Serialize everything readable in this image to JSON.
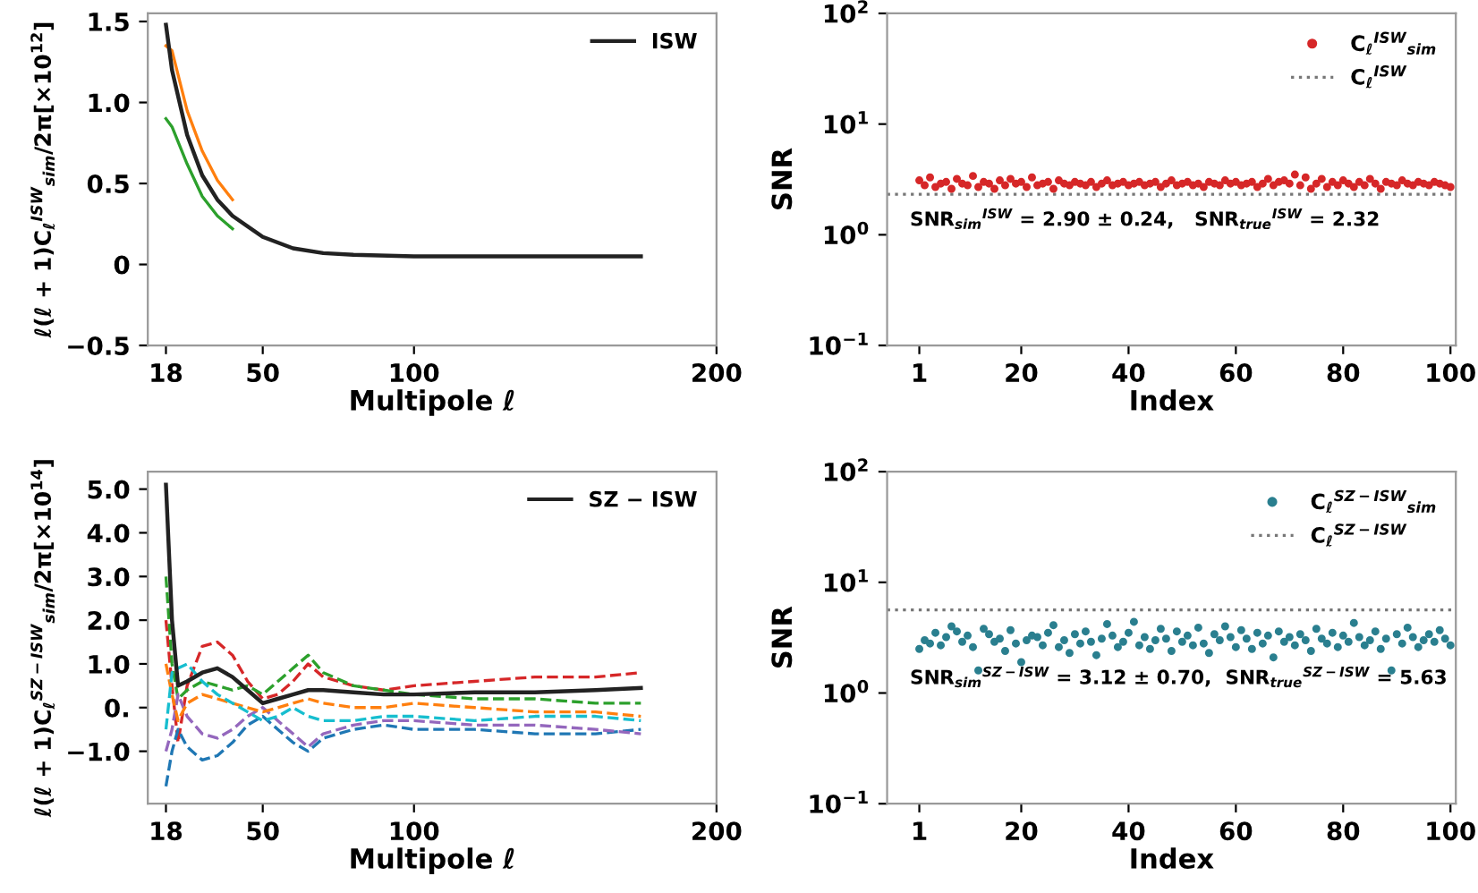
{
  "chart_data": [
    {
      "type": "line",
      "xlabel": "Multipole ℓ",
      "ylabel": "ℓ(ℓ + 1)C$_{ℓ}$$^{ISW}$$_{sim}$/2π[×10$^{12}$]",
      "xlim": [
        12,
        200
      ],
      "xticks": [
        18,
        50,
        100,
        200
      ],
      "ylim": [
        -0.5,
        1.55
      ],
      "yticks": [
        {
          "value": -0.5,
          "label": "−0.5"
        },
        0,
        0.5,
        {
          "value": 1,
          "label": "1.0"
        },
        1.5
      ],
      "legend": "top right",
      "grid": false,
      "x": [
        18,
        20,
        25,
        30,
        35,
        40,
        50,
        60,
        70,
        80,
        100,
        120,
        140,
        160,
        175
      ],
      "series": [
        {
          "color": "#ff7f0e",
          "values": [
            1.35,
            1.32,
            0.95,
            0.7,
            0.52,
            0.4,
            null,
            null,
            null,
            null,
            null,
            null,
            null,
            null,
            null
          ]
        },
        {
          "color": "#2ca02c",
          "values": [
            0.9,
            0.85,
            0.62,
            0.42,
            0.3,
            0.22,
            null,
            null,
            null,
            null,
            null,
            null,
            null,
            null,
            null
          ]
        },
        {
          "name": "ISW",
          "color": "#222222",
          "values": [
            1.48,
            1.2,
            0.8,
            0.55,
            0.4,
            0.3,
            0.17,
            0.1,
            0.07,
            0.06,
            0.05,
            0.05,
            0.05,
            0.05,
            0.05
          ]
        }
      ]
    },
    {
      "type": "scatter",
      "xlabel": "Index",
      "ylabel": "SNR",
      "log": "y",
      "xlim": [
        -5,
        101
      ],
      "xticks": [
        1,
        20,
        40,
        60,
        80,
        100
      ],
      "ylim": [
        0.1,
        100
      ],
      "yticks": [
        {
          "value": 0.1,
          "label": "10$^{−1}$"
        },
        {
          "value": 1,
          "label": "10$^{0}$"
        },
        {
          "value": 10,
          "label": "10$^{1}$"
        },
        {
          "value": 100,
          "label": "10$^{2}$"
        }
      ],
      "legend": "top right",
      "grid": false,
      "marker": "circle",
      "x": [
        1,
        2,
        3,
        4,
        5,
        6,
        7,
        8,
        9,
        10,
        11,
        12,
        13,
        14,
        15,
        16,
        17,
        18,
        19,
        20,
        21,
        22,
        23,
        24,
        25,
        26,
        27,
        28,
        29,
        30,
        31,
        32,
        33,
        34,
        35,
        36,
        37,
        38,
        39,
        40,
        41,
        42,
        43,
        44,
        45,
        46,
        47,
        48,
        49,
        50,
        51,
        52,
        53,
        54,
        55,
        56,
        57,
        58,
        59,
        60,
        61,
        62,
        63,
        64,
        65,
        66,
        67,
        68,
        69,
        70,
        71,
        72,
        73,
        74,
        75,
        76,
        77,
        78,
        79,
        80,
        81,
        82,
        83,
        84,
        85,
        86,
        87,
        88,
        89,
        90,
        91,
        92,
        93,
        94,
        95,
        96,
        97,
        98,
        99,
        100
      ],
      "series": [
        {
          "name": "C$_{ℓ}$$^{ISW}$$_{sim}$",
          "color": "#d62728",
          "values": [
            3.1,
            2.8,
            3.3,
            2.7,
            2.9,
            3.0,
            2.6,
            3.2,
            2.9,
            2.8,
            3.4,
            2.7,
            3.0,
            2.9,
            2.6,
            3.1,
            2.8,
            3.2,
            2.9,
            3.0,
            2.7,
            3.3,
            2.8,
            2.9,
            3.0,
            2.6,
            3.1,
            2.9,
            2.8,
            3.0,
            2.9,
            2.8,
            3.0,
            2.7,
            2.9,
            3.1,
            2.8,
            2.9,
            3.0,
            2.8,
            2.9,
            3.0,
            2.8,
            2.9,
            3.0,
            2.7,
            2.9,
            3.1,
            2.8,
            2.9,
            3.0,
            2.8,
            2.9,
            2.7,
            3.0,
            2.9,
            2.8,
            3.1,
            2.9,
            3.0,
            2.8,
            2.9,
            3.0,
            2.7,
            2.9,
            3.2,
            2.8,
            3.0,
            3.1,
            2.9,
            3.5,
            2.8,
            3.3,
            2.6,
            2.9,
            3.2,
            2.7,
            3.0,
            2.8,
            3.1,
            2.9,
            2.7,
            3.0,
            2.8,
            3.2,
            2.9,
            2.6,
            3.0,
            2.9,
            2.8,
            3.1,
            2.9,
            2.8,
            3.0,
            2.9,
            2.8,
            3.0,
            2.9,
            2.8,
            2.7
          ]
        }
      ],
      "ref_lines": [
        {
          "axis": "y",
          "value": 2.32,
          "label": "C$_{ℓ}$$^{ISW}$",
          "color": "#777777",
          "line_style": "dotted"
        }
      ],
      "annotations": [
        "SNR$_{sim}$$^{ISW}$ = 2.90 ± 0.24,   SNR$_{true}$$^{ISW}$ = 2.32"
      ]
    },
    {
      "type": "line",
      "xlabel": "Multipole ℓ",
      "ylabel": "ℓ(ℓ + 1)C$_{ℓ}$$^{SZ−ISW}$$_{sim}$/2π[×10$^{14}$]",
      "xlim": [
        12,
        200
      ],
      "xticks": [
        18,
        50,
        100,
        200
      ],
      "ylim": [
        -2.2,
        5.4
      ],
      "yticks": [
        {
          "value": -1,
          "label": "−1.0"
        },
        {
          "value": 0,
          "label": "0."
        },
        {
          "value": 1,
          "label": "1.0"
        },
        {
          "value": 2,
          "label": "2.0"
        },
        {
          "value": 3,
          "label": "3.0"
        },
        {
          "value": 4,
          "label": "4.0"
        },
        {
          "value": 5,
          "label": "5.0"
        }
      ],
      "legend": "top right",
      "grid": false,
      "x": [
        18,
        20,
        22,
        25,
        30,
        35,
        40,
        45,
        50,
        55,
        60,
        65,
        70,
        80,
        90,
        100,
        120,
        140,
        160,
        175
      ],
      "series": [
        {
          "color": "#d62728",
          "line_style": "dashed",
          "values": [
            2.0,
            0.5,
            -0.8,
            0.5,
            1.4,
            1.5,
            1.2,
            0.6,
            0.2,
            0.3,
            0.6,
            1.0,
            0.7,
            0.5,
            0.4,
            0.5,
            0.6,
            0.7,
            0.7,
            0.8
          ]
        },
        {
          "color": "#1f77b4",
          "line_style": "dashed",
          "values": [
            -1.8,
            -1.0,
            -0.5,
            -0.9,
            -1.2,
            -1.1,
            -0.8,
            -0.4,
            -0.2,
            -0.5,
            -0.8,
            -1.0,
            -0.7,
            -0.5,
            -0.4,
            -0.5,
            -0.5,
            -0.6,
            -0.6,
            -0.5
          ]
        },
        {
          "color": "#2ca02c",
          "line_style": "dashed",
          "values": [
            3.0,
            1.0,
            0.2,
            0.4,
            0.6,
            0.5,
            0.4,
            0.5,
            0.3,
            0.6,
            0.9,
            1.2,
            0.8,
            0.5,
            0.4,
            0.3,
            0.2,
            0.2,
            0.1,
            0.1
          ]
        },
        {
          "color": "#9467bd",
          "line_style": "dashed",
          "values": [
            -1.0,
            -0.5,
            0.3,
            -0.2,
            -0.6,
            -0.7,
            -0.5,
            -0.2,
            0.0,
            -0.3,
            -0.6,
            -0.9,
            -0.6,
            -0.4,
            -0.3,
            -0.3,
            -0.4,
            -0.4,
            -0.5,
            -0.6
          ]
        },
        {
          "color": "#ff7f0e",
          "line_style": "dashed",
          "values": [
            1.0,
            0.3,
            -0.3,
            0.1,
            0.3,
            0.2,
            0.1,
            0.0,
            -0.1,
            0.0,
            0.1,
            0.2,
            0.1,
            0.0,
            0.0,
            0.1,
            0.0,
            -0.1,
            -0.1,
            -0.2
          ]
        },
        {
          "color": "#17becf",
          "line_style": "dashed",
          "values": [
            -0.5,
            0.8,
            0.9,
            1.0,
            0.6,
            0.3,
            0.1,
            -0.1,
            -0.3,
            -0.2,
            0.0,
            -0.2,
            -0.3,
            -0.3,
            -0.2,
            -0.2,
            -0.3,
            -0.2,
            -0.2,
            -0.3
          ]
        },
        {
          "name": "SZ − ISW",
          "color": "#222222",
          "line_style": "solid",
          "values": [
            5.1,
            2.0,
            0.5,
            0.6,
            0.8,
            0.9,
            0.7,
            0.4,
            0.1,
            0.2,
            0.3,
            0.4,
            0.4,
            0.35,
            0.3,
            0.3,
            0.35,
            0.35,
            0.4,
            0.45
          ]
        }
      ]
    },
    {
      "type": "scatter",
      "xlabel": "Index",
      "ylabel": "SNR",
      "log": "y",
      "xlim": [
        -5,
        101
      ],
      "xticks": [
        1,
        20,
        40,
        60,
        80,
        100
      ],
      "ylim": [
        0.1,
        100
      ],
      "yticks": [
        {
          "value": 0.1,
          "label": "10$^{−1}$"
        },
        {
          "value": 1,
          "label": "10$^{0}$"
        },
        {
          "value": 10,
          "label": "10$^{1}$"
        },
        {
          "value": 100,
          "label": "10$^{2}$"
        }
      ],
      "legend": "top right",
      "grid": false,
      "marker": "circle",
      "x": [
        1,
        2,
        3,
        4,
        5,
        6,
        7,
        8,
        9,
        10,
        11,
        12,
        13,
        14,
        15,
        16,
        17,
        18,
        19,
        20,
        21,
        22,
        23,
        24,
        25,
        26,
        27,
        28,
        29,
        30,
        31,
        32,
        33,
        34,
        35,
        36,
        37,
        38,
        39,
        40,
        41,
        42,
        43,
        44,
        45,
        46,
        47,
        48,
        49,
        50,
        51,
        52,
        53,
        54,
        55,
        56,
        57,
        58,
        59,
        60,
        61,
        62,
        63,
        64,
        65,
        66,
        67,
        68,
        69,
        70,
        71,
        72,
        73,
        74,
        75,
        76,
        77,
        78,
        79,
        80,
        81,
        82,
        83,
        84,
        85,
        86,
        87,
        88,
        89,
        90,
        91,
        92,
        93,
        94,
        95,
        96,
        97,
        98,
        99,
        100
      ],
      "series": [
        {
          "name": "C$_{ℓ}$$^{SZ−ISW}$$_{sim}$",
          "color": "#2a7f8f",
          "values": [
            2.5,
            3.0,
            2.8,
            3.5,
            2.7,
            3.2,
            4.0,
            3.6,
            2.9,
            3.3,
            2.6,
            1.6,
            3.8,
            3.4,
            2.9,
            3.1,
            2.4,
            3.7,
            2.8,
            1.9,
            3.0,
            3.3,
            3.2,
            2.7,
            3.5,
            4.1,
            2.6,
            3.0,
            2.3,
            3.4,
            2.8,
            3.6,
            2.9,
            2.2,
            3.1,
            4.2,
            3.3,
            2.6,
            2.9,
            3.5,
            4.4,
            2.7,
            3.2,
            2.5,
            3.0,
            3.8,
            3.1,
            2.4,
            3.6,
            2.9,
            3.3,
            2.7,
            3.9,
            2.8,
            2.3,
            3.4,
            3.0,
            4.0,
            3.2,
            2.6,
            3.7,
            3.1,
            2.5,
            3.5,
            2.8,
            3.3,
            2.1,
            3.6,
            2.9,
            3.2,
            2.7,
            3.4,
            3.0,
            2.4,
            3.8,
            3.1,
            2.8,
            3.5,
            2.6,
            3.3,
            2.9,
            4.3,
            3.2,
            2.7,
            3.0,
            3.6,
            2.5,
            3.1,
            1.6,
            3.4,
            2.8,
            3.9,
            3.2,
            2.6,
            3.0,
            3.4,
            2.9,
            3.7,
            3.1,
            2.7
          ]
        }
      ],
      "ref_lines": [
        {
          "axis": "y",
          "value": 5.63,
          "label": "C$_{ℓ}$$^{SZ−ISW}$",
          "color": "#777777",
          "line_style": "dotted"
        }
      ],
      "annotations": [
        "SNR$_{sim}$$^{SZ−ISW}$ = 3.12 ± 0.70,  SNR$_{true}$$^{SZ−ISW}$ = 5.63"
      ]
    }
  ]
}
